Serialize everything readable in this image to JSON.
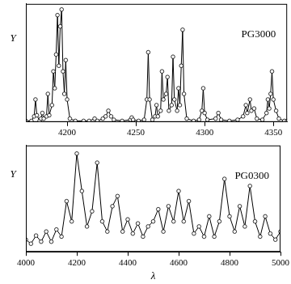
{
  "chart_data": [
    {
      "type": "line",
      "title": "PG3000",
      "y_label": "Y",
      "marker": "circle",
      "color": "#000000",
      "grid": false,
      "tick_labels": "x",
      "xlim": [
        4170,
        4360
      ],
      "xticks": [
        4200,
        4250,
        4300,
        4350
      ],
      "ylim": [
        0,
        1.05
      ],
      "x": [
        4170,
        4174,
        4176,
        4177,
        4178,
        4180,
        4181,
        4182,
        4183,
        4185,
        4186,
        4187,
        4189,
        4190,
        4191,
        4192,
        4193,
        4194,
        4195,
        4196,
        4197,
        4198,
        4199,
        4200,
        4202,
        4206,
        4212,
        4216,
        4220,
        4222,
        4226,
        4228,
        4230,
        4232,
        4234,
        4240,
        4246,
        4247,
        4248,
        4252,
        4256,
        4258,
        4259,
        4260,
        4262,
        4264,
        4265,
        4266,
        4268,
        4269,
        4270,
        4272,
        4273,
        4274,
        4276,
        4277,
        4278,
        4280,
        4281,
        4282,
        4283,
        4284,
        4285,
        4287,
        4292,
        4296,
        4298,
        4299,
        4300,
        4302,
        4308,
        4310,
        4312,
        4318,
        4324,
        4328,
        4330,
        4331,
        4333,
        4334,
        4336,
        4338,
        4342,
        4345,
        4346,
        4347,
        4348,
        4349,
        4350,
        4352,
        4354,
        4358,
        4360
      ],
      "values": [
        0.01,
        0.01,
        0.05,
        0.2,
        0.06,
        0.01,
        0.03,
        0.08,
        0.03,
        0.05,
        0.25,
        0.06,
        0.15,
        0.45,
        0.3,
        0.6,
        0.95,
        0.5,
        0.85,
        1.0,
        0.45,
        0.25,
        0.55,
        0.2,
        0.03,
        0.01,
        0.01,
        0.01,
        0.03,
        0.01,
        0.03,
        0.05,
        0.1,
        0.05,
        0.02,
        0.01,
        0.02,
        0.04,
        0.02,
        0.01,
        0.02,
        0.2,
        0.62,
        0.2,
        0.02,
        0.05,
        0.15,
        0.05,
        0.1,
        0.45,
        0.2,
        0.25,
        0.4,
        0.1,
        0.15,
        0.58,
        0.2,
        0.1,
        0.3,
        0.15,
        0.5,
        0.82,
        0.25,
        0.03,
        0.01,
        0.02,
        0.1,
        0.3,
        0.08,
        0.02,
        0.03,
        0.08,
        0.02,
        0.01,
        0.02,
        0.05,
        0.15,
        0.08,
        0.2,
        0.1,
        0.12,
        0.03,
        0.02,
        0.08,
        0.2,
        0.12,
        0.25,
        0.45,
        0.2,
        0.1,
        0.03,
        0.01,
        0.01
      ]
    },
    {
      "type": "line",
      "title": "PG0300",
      "x_label": "λ",
      "y_label": "Y",
      "marker": "circle",
      "color": "#000000",
      "grid": false,
      "tick_labels": "x",
      "xlim": [
        4000,
        5000
      ],
      "xticks": [
        4000,
        4200,
        4400,
        4600,
        4800,
        5000
      ],
      "ylim": [
        0,
        1.05
      ],
      "x": [
        4000,
        4020,
        4040,
        4060,
        4080,
        4100,
        4120,
        4140,
        4160,
        4180,
        4200,
        4220,
        4240,
        4260,
        4280,
        4300,
        4320,
        4340,
        4360,
        4380,
        4400,
        4420,
        4440,
        4460,
        4480,
        4500,
        4520,
        4540,
        4560,
        4580,
        4600,
        4620,
        4640,
        4660,
        4680,
        4700,
        4720,
        4740,
        4760,
        4780,
        4800,
        4820,
        4840,
        4860,
        4880,
        4900,
        4920,
        4940,
        4960,
        4980,
        5000
      ],
      "values": [
        0.12,
        0.08,
        0.16,
        0.1,
        0.2,
        0.1,
        0.22,
        0.15,
        0.5,
        0.3,
        0.97,
        0.6,
        0.25,
        0.4,
        0.88,
        0.3,
        0.2,
        0.45,
        0.55,
        0.2,
        0.32,
        0.18,
        0.28,
        0.15,
        0.25,
        0.3,
        0.42,
        0.2,
        0.45,
        0.3,
        0.6,
        0.3,
        0.5,
        0.18,
        0.25,
        0.15,
        0.35,
        0.15,
        0.3,
        0.72,
        0.35,
        0.2,
        0.45,
        0.25,
        0.65,
        0.3,
        0.15,
        0.35,
        0.18,
        0.12,
        0.2
      ]
    }
  ]
}
